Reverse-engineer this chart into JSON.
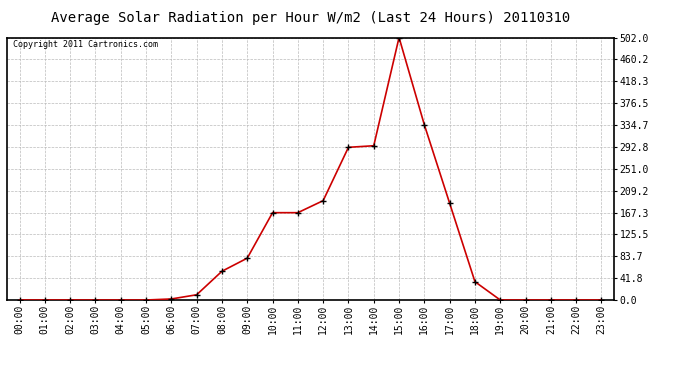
{
  "title": "Average Solar Radiation per Hour W/m2 (Last 24 Hours) 20110310",
  "copyright": "Copyright 2011 Cartronics.com",
  "hours": [
    "00:00",
    "01:00",
    "02:00",
    "03:00",
    "04:00",
    "05:00",
    "06:00",
    "07:00",
    "08:00",
    "09:00",
    "10:00",
    "11:00",
    "12:00",
    "13:00",
    "14:00",
    "15:00",
    "16:00",
    "17:00",
    "18:00",
    "19:00",
    "20:00",
    "21:00",
    "22:00",
    "23:00"
  ],
  "values": [
    0,
    0,
    0,
    0,
    0,
    0,
    2,
    10,
    55,
    80,
    167,
    167,
    190,
    292,
    295,
    502,
    335,
    185,
    35,
    0,
    0,
    0,
    0,
    0
  ],
  "line_color": "#cc0000",
  "marker_color": "#000000",
  "background_color": "#ffffff",
  "grid_color": "#bbbbbb",
  "yticks": [
    0.0,
    41.8,
    83.7,
    125.5,
    167.3,
    209.2,
    251.0,
    292.8,
    334.7,
    376.5,
    418.3,
    460.2,
    502.0
  ],
  "ytick_labels": [
    "0.0",
    "41.8",
    "83.7",
    "125.5",
    "167.3",
    "209.2",
    "251.0",
    "292.8",
    "334.7",
    "376.5",
    "418.3",
    "460.2",
    "502.0"
  ],
  "ymax": 502.0,
  "ymin": 0.0,
  "title_fontsize": 10,
  "copyright_fontsize": 6,
  "tick_fontsize": 7,
  "border_color": "#000000"
}
